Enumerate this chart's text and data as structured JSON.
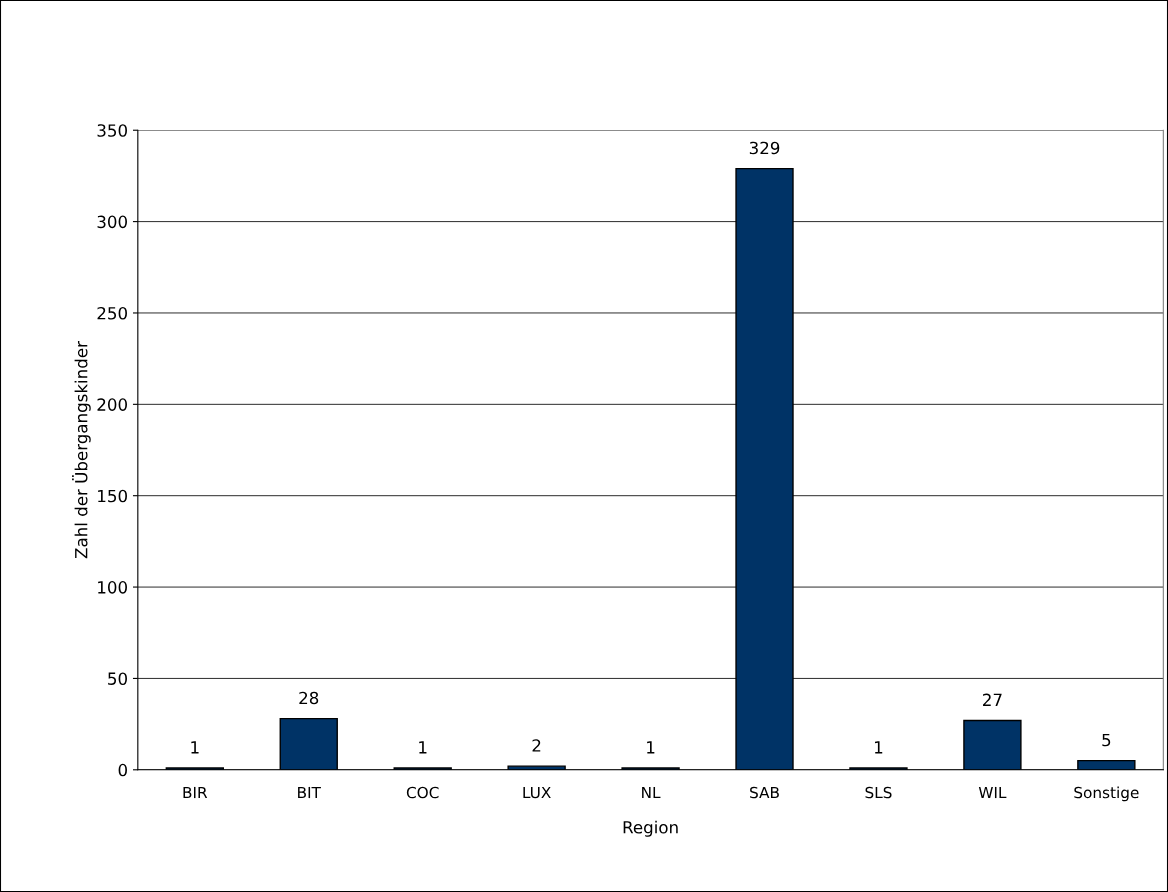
{
  "chart_data": {
    "type": "bar",
    "xlabel": "Region",
    "ylabel": "Zahl der Übergangskinder",
    "categories": [
      "BIR",
      "BIT",
      "COC",
      "LUX",
      "NL",
      "SAB",
      "SLS",
      "WIL",
      "Sonstige"
    ],
    "values": [
      1,
      28,
      1,
      2,
      1,
      329,
      1,
      27,
      5
    ],
    "color": "#003366",
    "ylim": [
      0,
      350
    ],
    "yticks": [
      0,
      50,
      100,
      150,
      200,
      250,
      300,
      350
    ],
    "grid": "y",
    "data_labels": true
  }
}
